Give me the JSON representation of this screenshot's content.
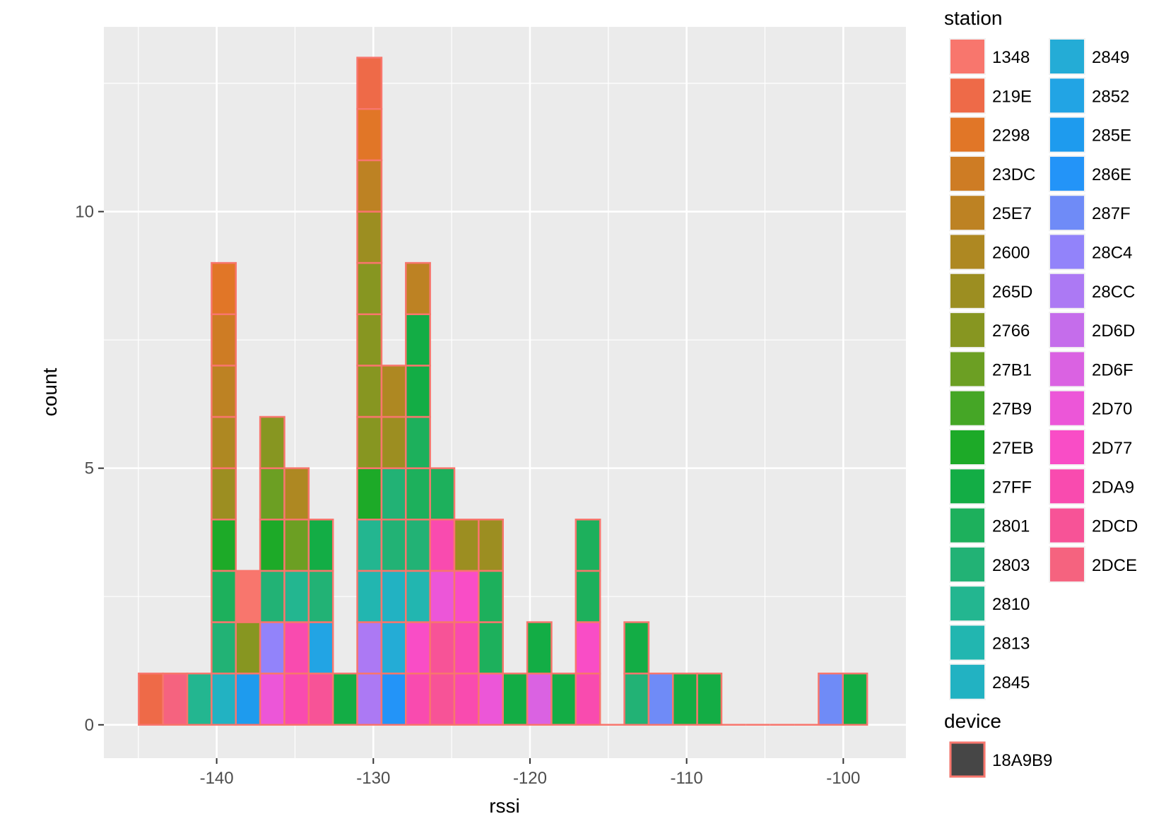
{
  "chart_data": {
    "type": "bar",
    "subtype": "stacked-histogram",
    "xlabel": "rssi",
    "ylabel": "count",
    "xlim": [
      -147.2,
      -96
    ],
    "ylim": [
      -0.65,
      13.6
    ],
    "x_ticks": [
      -140,
      -130,
      -120,
      -110,
      -100
    ],
    "x_tick_labels": [
      "-140",
      "-130",
      "-120",
      "-110",
      "-100"
    ],
    "y_ticks": [
      0,
      5,
      10
    ],
    "y_tick_labels": [
      "0",
      "5",
      "10"
    ],
    "y_minor_ticks": [
      2.5,
      7.5,
      12.5
    ],
    "grid": true,
    "bin_width": 1.55,
    "bar_outline_color": "#F8766D",
    "legend_position": "right",
    "legend": {
      "station": {
        "title": "station",
        "entries": [
          {
            "label": "1348",
            "color": "#F8766D"
          },
          {
            "label": "219E",
            "color": "#EE6A48"
          },
          {
            "label": "2298",
            "color": "#E17627"
          },
          {
            "label": "23DC",
            "color": "#CE7C24"
          },
          {
            "label": "25E7",
            "color": "#BD8223"
          },
          {
            "label": "2600",
            "color": "#AE8822"
          },
          {
            "label": "265D",
            "color": "#9C8E21"
          },
          {
            "label": "2766",
            "color": "#879621"
          },
          {
            "label": "27B1",
            "color": "#6C9F23"
          },
          {
            "label": "27B9",
            "color": "#45A626"
          },
          {
            "label": "27EB",
            "color": "#1DAA28"
          },
          {
            "label": "27FF",
            "color": "#13AD45"
          },
          {
            "label": "2801",
            "color": "#1DB05C"
          },
          {
            "label": "2803",
            "color": "#22B275"
          },
          {
            "label": "2810",
            "color": "#23B690"
          },
          {
            "label": "2813",
            "color": "#22B6B0"
          },
          {
            "label": "2845",
            "color": "#22B2C2"
          },
          {
            "label": "2849",
            "color": "#24ACD6"
          },
          {
            "label": "2852",
            "color": "#22A4E4"
          },
          {
            "label": "285E",
            "color": "#1E9BEE"
          },
          {
            "label": "286E",
            "color": "#2394F8"
          },
          {
            "label": "287F",
            "color": "#6F8BF7"
          },
          {
            "label": "28C4",
            "color": "#9283FA"
          },
          {
            "label": "28CC",
            "color": "#AC79F4"
          },
          {
            "label": "2D6D",
            "color": "#C56DEB"
          },
          {
            "label": "2D6F",
            "color": "#DA62E2"
          },
          {
            "label": "2D70",
            "color": "#EC56D8"
          },
          {
            "label": "2D77",
            "color": "#F94DC6"
          },
          {
            "label": "2DA9",
            "color": "#F94BAF"
          },
          {
            "label": "2DCD",
            "color": "#F75397"
          },
          {
            "label": "2DCE",
            "color": "#F5637F"
          }
        ]
      },
      "device": {
        "title": "device",
        "entries": [
          {
            "label": "18A9B9",
            "color": "#464646"
          }
        ]
      }
    },
    "bars": [
      {
        "x": -144.2,
        "stack": [
          "219E"
        ]
      },
      {
        "x": -142.65,
        "stack": [
          "2DCE"
        ]
      },
      {
        "x": -141.1,
        "stack": [
          "2810"
        ]
      },
      {
        "x": -139.55,
        "stack": [
          "2845",
          "2803",
          "2801",
          "27EB",
          "265D",
          "2600",
          "25E7",
          "23DC",
          "2298"
        ]
      },
      {
        "x": -138.0,
        "stack": [
          "285E",
          "2766",
          "1348"
        ]
      },
      {
        "x": -136.45,
        "stack": [
          "2D70",
          "28C4",
          "2803",
          "27EB",
          "27B1",
          "2766"
        ]
      },
      {
        "x": -134.9,
        "stack": [
          "2DA9",
          "2DA9",
          "2810",
          "27B1",
          "2600"
        ]
      },
      {
        "x": -133.35,
        "stack": [
          "2DCD",
          "2852",
          "2803",
          "27FF"
        ]
      },
      {
        "x": -131.8,
        "stack": [
          "27FF"
        ]
      },
      {
        "x": -130.25,
        "stack": [
          "28CC",
          "28CC",
          "2813",
          "2810",
          "27EB",
          "2766",
          "2766",
          "2766",
          "2766",
          "265D",
          "25E7",
          "2298",
          "219E"
        ]
      },
      {
        "x": -128.7,
        "stack": [
          "286E",
          "2849",
          "2845",
          "2803",
          "2803",
          "265D",
          "2600"
        ]
      },
      {
        "x": -127.15,
        "stack": [
          "2DA9",
          "2D77",
          "2813",
          "2803",
          "2801",
          "2801",
          "27FF",
          "27FF",
          "25E7"
        ]
      },
      {
        "x": -125.6,
        "stack": [
          "2DCD",
          "2DCD",
          "2D70",
          "2DA9",
          "2801"
        ]
      },
      {
        "x": -124.05,
        "stack": [
          "2DA9",
          "2DA9",
          "2D77",
          "265D"
        ]
      },
      {
        "x": -122.5,
        "stack": [
          "2D70",
          "2801",
          "2801",
          "265D"
        ]
      },
      {
        "x": -120.95,
        "stack": [
          "27FF"
        ]
      },
      {
        "x": -119.4,
        "stack": [
          "2D6F",
          "27FF"
        ]
      },
      {
        "x": -117.85,
        "stack": [
          "27FF"
        ]
      },
      {
        "x": -116.3,
        "stack": [
          "2DA9",
          "2D77",
          "2801",
          "2801"
        ]
      },
      {
        "x": -114.75,
        "stack": []
      },
      {
        "x": -113.2,
        "stack": [
          "2803",
          "27FF"
        ]
      },
      {
        "x": -111.65,
        "stack": [
          "287F"
        ]
      },
      {
        "x": -110.1,
        "stack": [
          "27FF"
        ]
      },
      {
        "x": -108.55,
        "stack": [
          "27FF"
        ]
      },
      {
        "x": -107.0,
        "stack": []
      },
      {
        "x": -105.45,
        "stack": []
      },
      {
        "x": -103.9,
        "stack": []
      },
      {
        "x": -102.35,
        "stack": []
      },
      {
        "x": -100.8,
        "stack": [
          "287F"
        ]
      },
      {
        "x": -99.25,
        "stack": [
          "27FF"
        ]
      }
    ]
  }
}
